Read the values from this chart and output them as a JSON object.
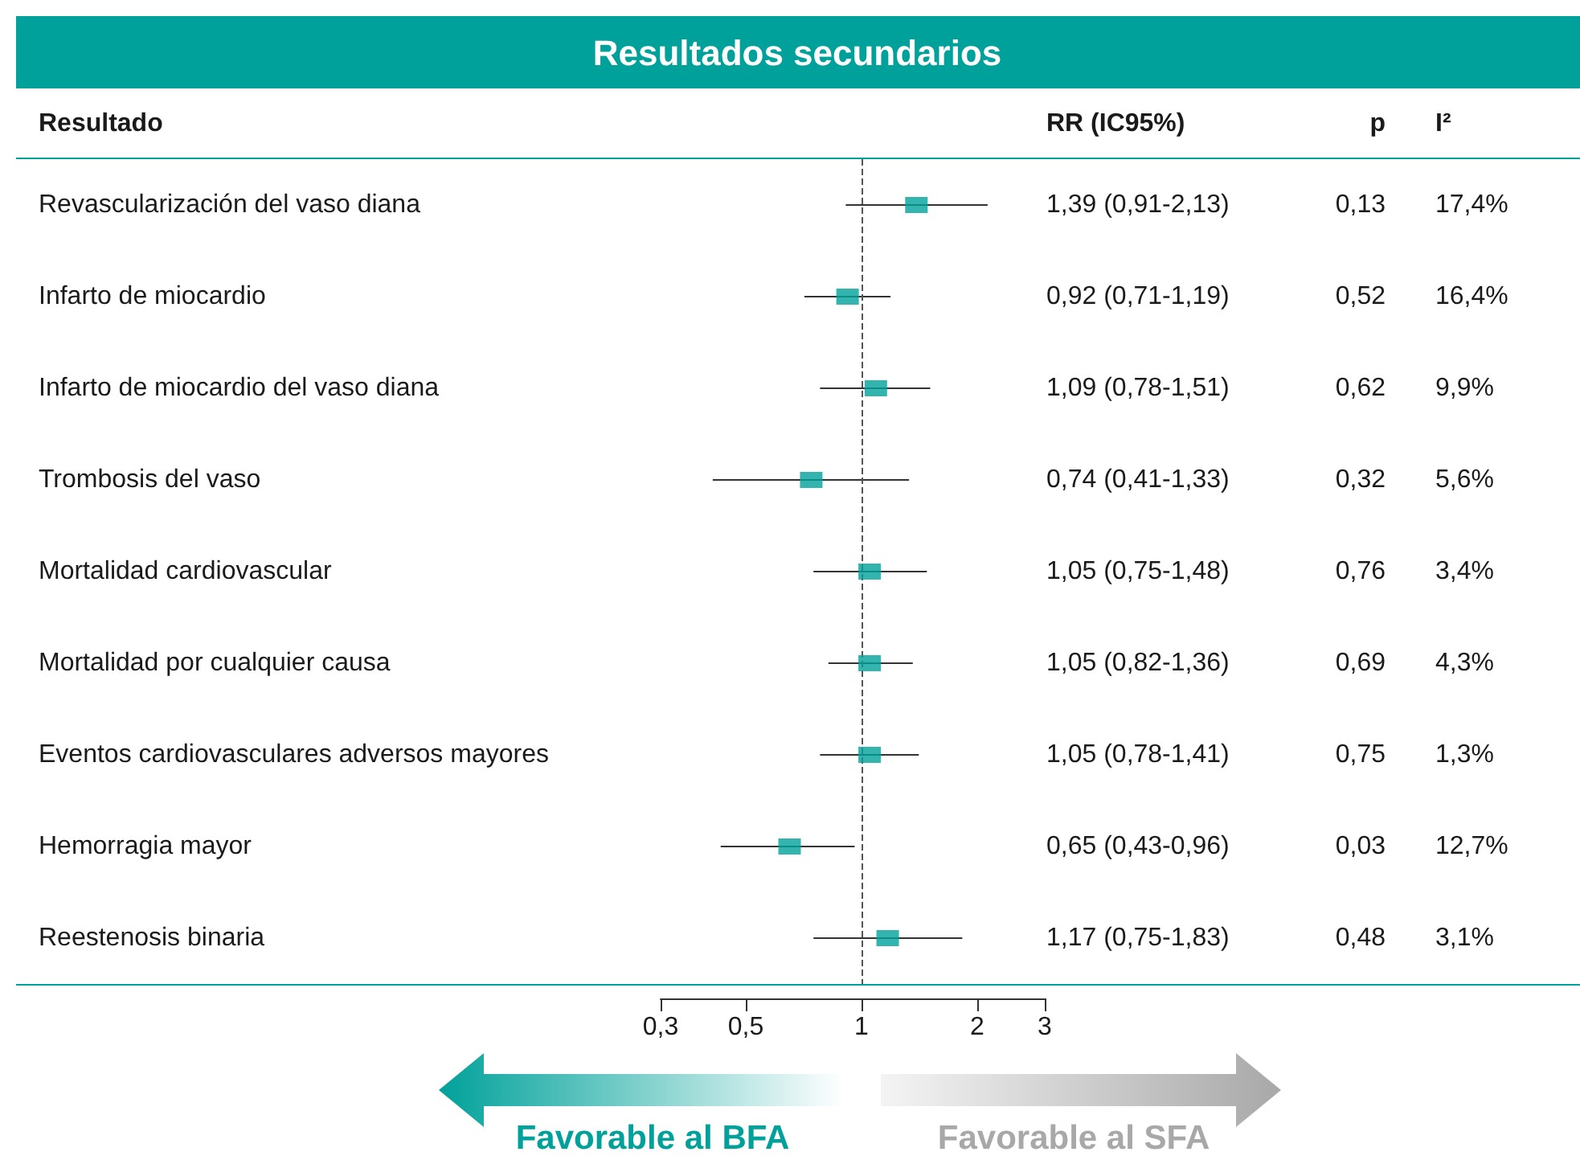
{
  "chart_data": {
    "type": "scatter",
    "title": "Resultados secundarios",
    "orientation": "horizontal",
    "marker": "square",
    "log": "x",
    "grid": false,
    "categories": [
      "Revascularización del vaso diana",
      "Infarto de miocardio",
      "Infarto de miocardio del vaso diana",
      "Trombosis del vaso",
      "Mortalidad cardiovascular",
      "Mortalidad por cualquier causa",
      "Eventos cardiovasculares adversos mayores",
      "Hemorragia mayor",
      "Reestenosis binaria"
    ],
    "series": [
      {
        "color": "#00a19a",
        "values": [
          1.39,
          0.92,
          1.09,
          0.74,
          1.05,
          1.05,
          1.05,
          0.65,
          1.17
        ],
        "errors": [
          [
            0.91,
            2.13
          ],
          [
            0.71,
            1.19
          ],
          [
            0.78,
            1.51
          ],
          [
            0.41,
            1.33
          ],
          [
            0.75,
            1.48
          ],
          [
            0.82,
            1.36
          ],
          [
            0.78,
            1.41
          ],
          [
            0.43,
            0.96
          ],
          [
            0.75,
            1.83
          ]
        ],
        "value_labels": [
          "1,39 (0,91-2,13)",
          "0,92 (0,71-1,19)",
          "1,09 (0,78-1,51)",
          "0,74 (0,41-1,33)",
          "1,05 (0,75-1,48)",
          "1,05 (0,82-1,36)",
          "1,05 (0,78-1,41)",
          "0,65 (0,43-0,96)",
          "1,17 (0,75-1,83)"
        ]
      }
    ],
    "xlim": [
      0.3,
      3
    ],
    "xticks": [
      {
        "value": 0.3,
        "label": "0,3"
      },
      {
        "value": 0.5,
        "label": "0,5"
      },
      1,
      2,
      3
    ],
    "ref_lines": [
      {
        "axis": "x",
        "value": 1,
        "color": "#555555",
        "line_style": "dashed"
      }
    ],
    "annotations": [
      "Resultado",
      "RR (IC95%)",
      "p",
      "I²",
      "0,13",
      "0,52",
      "0,62",
      "0,32",
      "0,76",
      "0,69",
      "0,75",
      "0,03",
      "0,48",
      "17,4%",
      "16,4%",
      "9,9%",
      "5,6%",
      "3,4%",
      "4,3%",
      "1,3%",
      "12,7%",
      "3,1%",
      "Favorable al BFA",
      "Favorable al SFA"
    ]
  }
}
